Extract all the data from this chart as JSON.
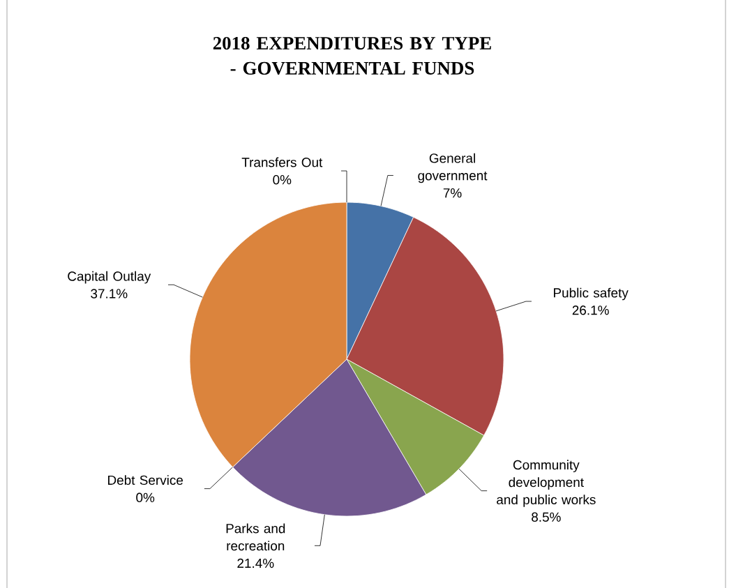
{
  "chart_data": {
    "type": "pie",
    "title": "2018 EXPENDITURES BY TYPE - GOVERNMENTAL FUNDS",
    "categories": [
      "General government",
      "Public safety",
      "Community development and public works",
      "Parks and recreation",
      "Debt Service",
      "Capital Outlay",
      "Transfers Out"
    ],
    "values": [
      7,
      26.1,
      8.5,
      21.4,
      0,
      37.1,
      0
    ],
    "value_labels": [
      "7%",
      "26.1%",
      "8.5%",
      "21.4%",
      "0%",
      "37.1%",
      "0%"
    ],
    "colors": [
      "#4572a7",
      "#aa4643",
      "#89a54e",
      "#71588f",
      "#4198af",
      "#db843d",
      "#93a9cf"
    ]
  }
}
